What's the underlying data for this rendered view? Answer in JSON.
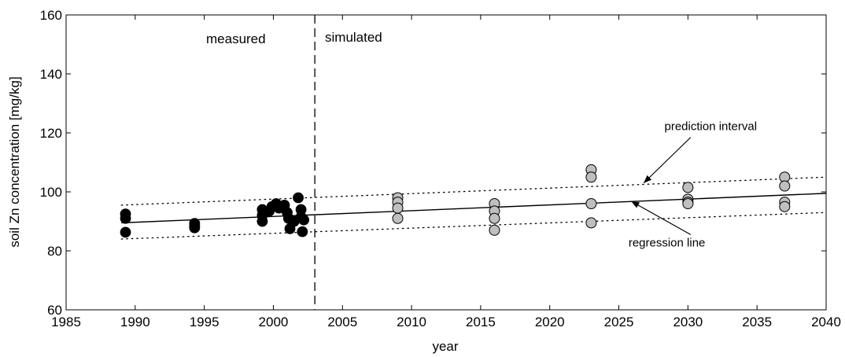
{
  "chart_data": {
    "type": "scatter",
    "xlabel": "year",
    "ylabel": "soil Zn concentration  [mg/kg]",
    "xlim": [
      1985,
      2040
    ],
    "ylim": [
      60,
      160
    ],
    "xticks": [
      1985,
      1990,
      1995,
      2000,
      2005,
      2010,
      2015,
      2020,
      2025,
      2030,
      2035,
      2040
    ],
    "yticks": [
      60,
      80,
      100,
      120,
      140,
      160
    ],
    "grid": false,
    "divider_year": 2003,
    "region_labels": {
      "measured": "measured",
      "simulated": "simulated"
    },
    "series": [
      {
        "name": "measured",
        "color": "#000000",
        "points": [
          [
            1989.3,
            92.5
          ],
          [
            1989.3,
            91.0
          ],
          [
            1989.3,
            86.3
          ],
          [
            1994.3,
            89.3
          ],
          [
            1994.3,
            88.5
          ],
          [
            1994.3,
            87.8
          ],
          [
            1999.2,
            94.0
          ],
          [
            1999.2,
            92.0
          ],
          [
            1999.2,
            90.0
          ],
          [
            1999.7,
            93.5
          ],
          [
            1999.9,
            95.0
          ],
          [
            2000.2,
            96.0
          ],
          [
            2000.4,
            94.5
          ],
          [
            2000.8,
            95.5
          ],
          [
            2001.0,
            93.0
          ],
          [
            2001.1,
            91.0
          ],
          [
            2001.2,
            87.5
          ],
          [
            2001.5,
            90.0
          ],
          [
            2001.8,
            98.0
          ],
          [
            2002.0,
            94.0
          ],
          [
            2002.0,
            91.5
          ],
          [
            2002.1,
            86.5
          ],
          [
            2002.2,
            90.5
          ]
        ]
      },
      {
        "name": "simulated",
        "color": "#bfbfbf",
        "points": [
          [
            2009,
            98.0
          ],
          [
            2009,
            96.5
          ],
          [
            2009,
            94.5
          ],
          [
            2009,
            91.0
          ],
          [
            2016,
            96.0
          ],
          [
            2016,
            93.5
          ],
          [
            2016,
            91.0
          ],
          [
            2016,
            87.0
          ],
          [
            2023,
            107.5
          ],
          [
            2023,
            105.0
          ],
          [
            2023,
            96.0
          ],
          [
            2023,
            89.5
          ],
          [
            2030,
            101.5
          ],
          [
            2030,
            97.5
          ],
          [
            2030,
            96.5
          ],
          [
            2030,
            96.0
          ],
          [
            2037,
            105.0
          ],
          [
            2037,
            102.0
          ],
          [
            2037,
            96.5
          ],
          [
            2037,
            95.0
          ]
        ]
      }
    ],
    "regression_line": {
      "label": "regression line",
      "x": [
        1989,
        2040
      ],
      "y": [
        89.5,
        99.5
      ]
    },
    "prediction_interval": {
      "label": "prediction interval",
      "upper": {
        "x": [
          1989,
          2040
        ],
        "y": [
          95.5,
          105.0
        ]
      },
      "lower": {
        "x": [
          1989,
          2040
        ],
        "y": [
          84.0,
          93.0
        ]
      }
    },
    "annotations": [
      {
        "text": "prediction interval",
        "text_at": [
          2028.3,
          121.0
        ],
        "arrow_to": [
          2026.8,
          103.0
        ]
      },
      {
        "text": "regression line",
        "text_at": [
          2025.7,
          81.5
        ],
        "arrow_to": [
          2025.9,
          96.8
        ]
      }
    ]
  }
}
